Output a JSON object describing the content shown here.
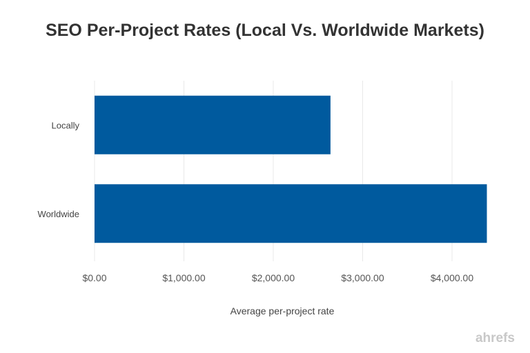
{
  "chart_data": {
    "type": "bar",
    "orientation": "horizontal",
    "title": "SEO Per-Project Rates (Local Vs. Worldwide Markets)",
    "xlabel": "Average per-project rate",
    "ylabel": "",
    "categories": [
      "Locally",
      "Worldwide"
    ],
    "values": [
      2640,
      4390
    ],
    "xlim": [
      0,
      4500
    ],
    "xticks": [
      0,
      1000,
      2000,
      3000,
      4000
    ],
    "xtick_labels": [
      "$0.00",
      "$1,000.00",
      "$2,000.00",
      "$3,000.00",
      "$4,000.00"
    ],
    "grid": "vertical",
    "bar_color": "#005a9e",
    "grid_color": "#e8e8e8"
  },
  "logo": "ahrefs"
}
